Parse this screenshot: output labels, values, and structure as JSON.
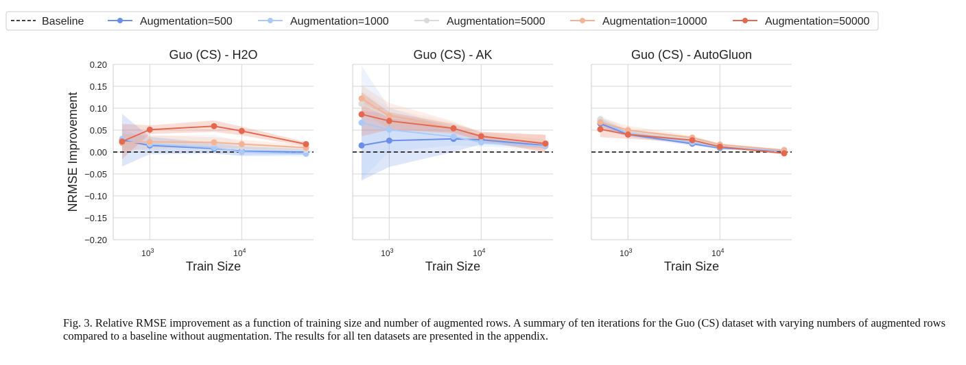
{
  "chart_data": [
    {
      "type": "line",
      "title": "Guo (CS) - H2O",
      "xlabel": "Train Size",
      "ylabel": "NRMSE Improvement",
      "xscale": "log",
      "x": [
        500,
        1000,
        5000,
        10000,
        50000
      ],
      "ylim": [
        -0.2,
        0.2
      ],
      "series": [
        {
          "name": "Augmentation=500",
          "values": [
            0.027,
            0.015,
            0.008,
            0.002,
            0.0
          ],
          "ci": [
            0.06,
            0.02,
            0.012,
            0.01,
            0.006
          ]
        },
        {
          "name": "Augmentation=1000",
          "values": [
            0.03,
            0.018,
            0.01,
            0.0,
            -0.004
          ],
          "ci": [
            0.02,
            0.015,
            0.012,
            0.01,
            0.006
          ]
        },
        {
          "name": "Augmentation=5000",
          "values": [
            0.022,
            0.022,
            0.02,
            0.012,
            0.005
          ],
          "ci": [
            0.02,
            0.015,
            0.02,
            0.01,
            0.006
          ]
        },
        {
          "name": "Augmentation=10000",
          "values": [
            0.021,
            0.023,
            0.022,
            0.018,
            0.01
          ],
          "ci": [
            0.02,
            0.015,
            0.012,
            0.01,
            0.006
          ]
        },
        {
          "name": "Augmentation=50000",
          "values": [
            0.024,
            0.051,
            0.059,
            0.048,
            0.018
          ],
          "ci": [
            0.04,
            0.01,
            0.013,
            0.01,
            0.005
          ]
        }
      ]
    },
    {
      "type": "line",
      "title": "Guo (CS) - AK",
      "xlabel": "Train Size",
      "ylabel": "",
      "xscale": "log",
      "x": [
        500,
        1000,
        5000,
        10000,
        50000
      ],
      "ylim": [
        -0.2,
        0.2
      ],
      "series": [
        {
          "name": "Augmentation=500",
          "values": [
            0.015,
            0.026,
            0.03,
            0.028,
            0.015
          ],
          "ci": [
            0.08,
            0.06,
            0.03,
            0.01,
            0.006
          ]
        },
        {
          "name": "Augmentation=1000",
          "values": [
            0.067,
            0.051,
            0.035,
            0.022,
            0.013
          ],
          "ci": [
            0.13,
            0.05,
            0.02,
            0.01,
            0.006
          ]
        },
        {
          "name": "Augmentation=5000",
          "values": [
            0.11,
            0.08,
            0.057,
            0.035,
            0.018
          ],
          "ci": [
            0.03,
            0.02,
            0.01,
            0.01,
            0.01
          ]
        },
        {
          "name": "Augmentation=10000",
          "values": [
            0.122,
            0.082,
            0.055,
            0.035,
            0.02
          ],
          "ci": [
            0.03,
            0.03,
            0.015,
            0.01,
            0.02
          ]
        },
        {
          "name": "Augmentation=50000",
          "values": [
            0.086,
            0.071,
            0.054,
            0.036,
            0.019
          ],
          "ci": [
            0.05,
            0.02,
            0.01,
            0.01,
            0.02
          ]
        }
      ]
    },
    {
      "type": "line",
      "title": "Guo (CS) - AutoGluon",
      "xlabel": "Train Size",
      "ylabel": "",
      "xscale": "log",
      "x": [
        500,
        1000,
        5000,
        10000,
        50000
      ],
      "ylim": [
        -0.2,
        0.2
      ],
      "series": [
        {
          "name": "Augmentation=500",
          "values": [
            0.065,
            0.04,
            0.019,
            0.009,
            0.003
          ],
          "ci": [
            0.01,
            0.005,
            0.004,
            0.003,
            0.002
          ]
        },
        {
          "name": "Augmentation=1000",
          "values": [
            0.07,
            0.043,
            0.022,
            0.011,
            0.004
          ],
          "ci": [
            0.01,
            0.005,
            0.004,
            0.003,
            0.002
          ]
        },
        {
          "name": "Augmentation=5000",
          "values": [
            0.075,
            0.047,
            0.03,
            0.015,
            0.005
          ],
          "ci": [
            0.01,
            0.005,
            0.004,
            0.003,
            0.002
          ]
        },
        {
          "name": "Augmentation=10000",
          "values": [
            0.068,
            0.05,
            0.033,
            0.017,
            0.004
          ],
          "ci": [
            0.01,
            0.01,
            0.004,
            0.003,
            0.002
          ]
        },
        {
          "name": "Augmentation=50000",
          "values": [
            0.052,
            0.04,
            0.027,
            0.012,
            -0.003
          ],
          "ci": [
            0.018,
            0.01,
            0.005,
            0.003,
            0.002
          ]
        }
      ]
    }
  ],
  "legend": {
    "baseline": "Baseline",
    "entries": [
      "Augmentation=500",
      "Augmentation=1000",
      "Augmentation=5000",
      "Augmentation=10000",
      "Augmentation=50000"
    ]
  },
  "colors": {
    "baseline": "#000000",
    "series": [
      "#6b8fe8",
      "#a9c9f7",
      "#dadada",
      "#f4b394",
      "#e3684f"
    ],
    "grid": "#d4d4d4"
  },
  "yticks": [
    "0.20",
    "0.15",
    "0.10",
    "0.05",
    "0.00",
    "−0.05",
    "−0.10",
    "−0.15",
    "−0.20"
  ],
  "xticks": [
    "10^3",
    "10^4"
  ],
  "caption": "Fig. 3.  Relative RMSE improvement as a function of training size and number of augmented rows. A summary of ten iterations for the Guo (CS) dataset with varying numbers of augmented rows compared to a baseline without augmentation. The results for all ten datasets are presented in the appendix."
}
